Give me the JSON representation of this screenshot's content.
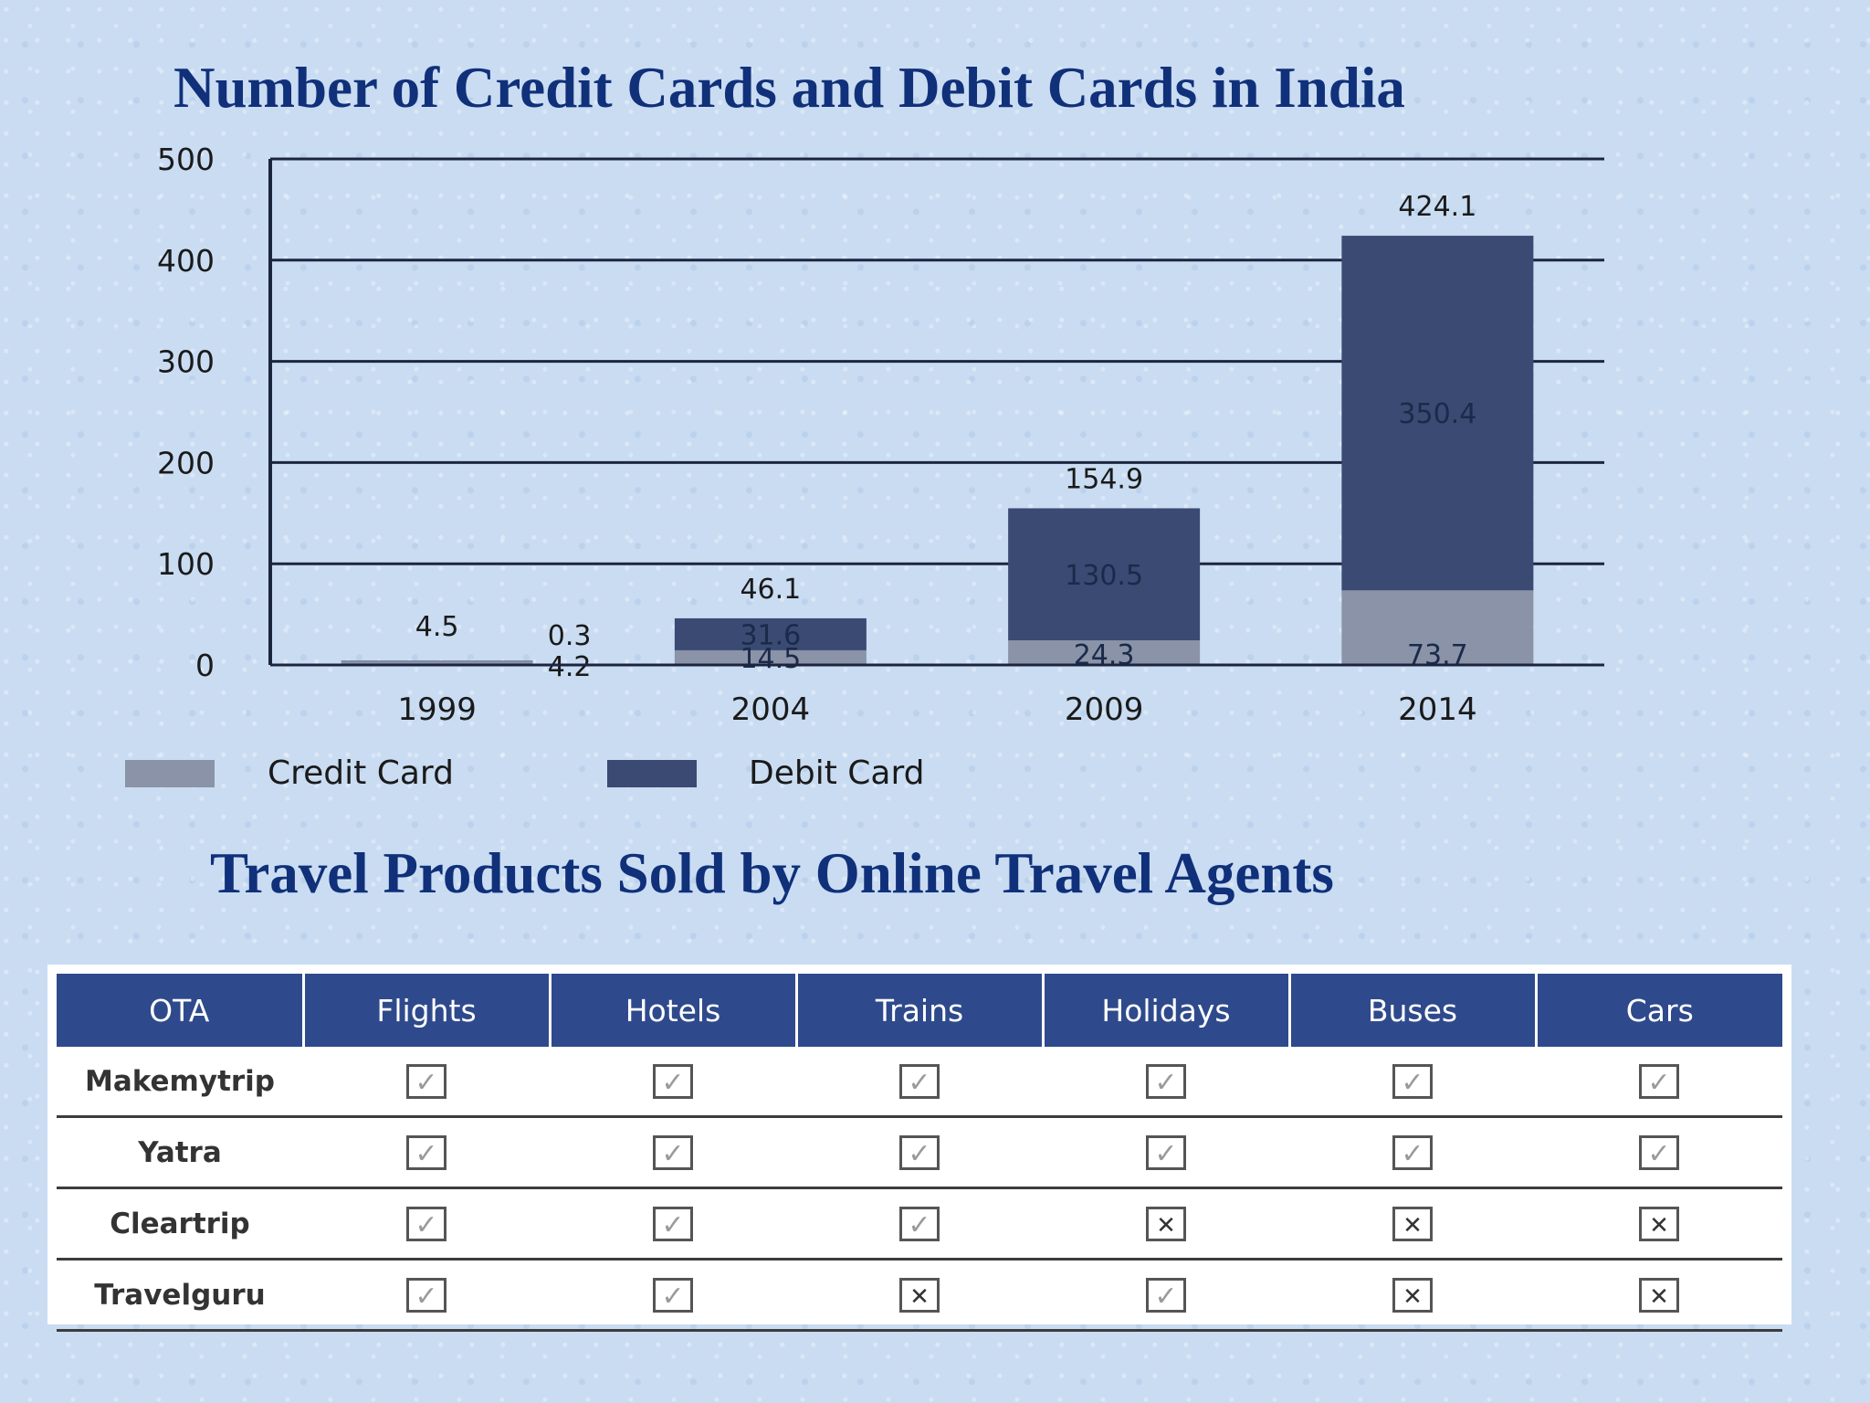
{
  "chart_data": {
    "type": "bar",
    "stacked": true,
    "title": "Number of Credit Cards and Debit Cards in India",
    "categories": [
      "1999",
      "2004",
      "2009",
      "2014"
    ],
    "series": [
      {
        "name": "Credit Card",
        "color": "#8a93a7",
        "values": [
          4.2,
          14.5,
          24.3,
          73.7
        ]
      },
      {
        "name": "Debit Card",
        "color": "#3a4a73",
        "values": [
          0.3,
          31.6,
          130.5,
          350.4
        ]
      }
    ],
    "totals": [
      4.5,
      46.1,
      154.9,
      424.1
    ],
    "yticks": [
      "500",
      "400",
      "300",
      "200",
      "100",
      "0"
    ],
    "ylim": [
      0,
      500
    ],
    "grid": true,
    "legend_position": "bottom-left"
  },
  "table_section": {
    "title": "Travel Products Sold by Online Travel Agents",
    "headers": [
      "OTA",
      "Flights",
      "Hotels",
      "Trains",
      "Holidays",
      "Buses",
      "Cars"
    ],
    "rows": [
      {
        "name": "Makemytrip",
        "marks": [
          true,
          true,
          true,
          true,
          true,
          true
        ]
      },
      {
        "name": "Yatra",
        "marks": [
          true,
          true,
          true,
          true,
          true,
          true
        ]
      },
      {
        "name": "Cleartrip",
        "marks": [
          true,
          true,
          true,
          false,
          false,
          false
        ]
      },
      {
        "name": "Travelguru",
        "marks": [
          true,
          true,
          false,
          true,
          false,
          false
        ]
      }
    ],
    "icons": {
      "yes": "checked-box-icon",
      "no": "crossed-box-icon"
    },
    "header_color": "#2f4a8c"
  }
}
